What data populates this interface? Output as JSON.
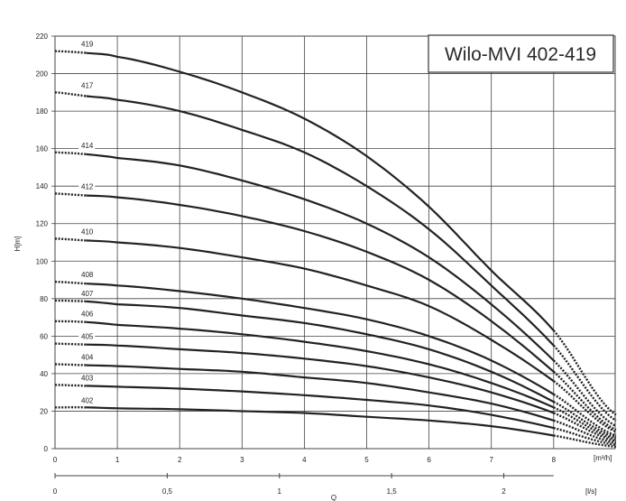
{
  "chart_data": {
    "type": "line",
    "title": "Wilo-MVI 402-419",
    "ylabel": "H[m]",
    "xlabel": "[m³/h]",
    "x2label": "[l/s]",
    "x2title": "Q",
    "xlim": [
      0,
      9
    ],
    "ylim": [
      0,
      220
    ],
    "x_ticks": [
      0,
      1,
      2,
      3,
      4,
      5,
      6,
      7,
      8
    ],
    "y_ticks": [
      0,
      20,
      40,
      60,
      80,
      100,
      120,
      140,
      160,
      180,
      200,
      220
    ],
    "x2_ticks": [
      "0",
      "0,5",
      "1",
      "1,5",
      "2"
    ],
    "x2_values": [
      0,
      0.5,
      1,
      1.5,
      2
    ],
    "grid": true,
    "colors": {
      "curve": "#222222",
      "grid": "#444444",
      "title_box": "#333333"
    },
    "series": [
      {
        "name": "419",
        "x": [
          0,
          0.5,
          1,
          2,
          3,
          4,
          5,
          6,
          7,
          8,
          9
        ],
        "y": [
          212,
          211,
          209,
          201,
          190,
          176,
          156,
          129,
          95,
          63,
          18
        ],
        "solid_x": [
          0.5,
          8
        ]
      },
      {
        "name": "417",
        "x": [
          0,
          0.5,
          1,
          2,
          3,
          4,
          5,
          6,
          7,
          8,
          9
        ],
        "y": [
          190,
          188,
          186,
          180,
          170,
          158,
          140,
          117,
          87,
          55,
          15
        ],
        "solid_x": [
          0.5,
          8
        ]
      },
      {
        "name": "414",
        "x": [
          0,
          0.5,
          1,
          2,
          3,
          4,
          5,
          6,
          7,
          8,
          9
        ],
        "y": [
          158,
          157,
          155,
          151,
          143,
          133,
          120,
          102,
          77,
          47,
          12
        ],
        "solid_x": [
          0.5,
          8
        ]
      },
      {
        "name": "412",
        "x": [
          0,
          0.5,
          1,
          2,
          3,
          4,
          5,
          6,
          7,
          8,
          9
        ],
        "y": [
          136,
          135,
          134,
          130,
          124,
          116,
          105,
          90,
          68,
          41,
          10
        ],
        "solid_x": [
          0.5,
          8
        ]
      },
      {
        "name": "410",
        "x": [
          0,
          0.5,
          1,
          2,
          3,
          4,
          5,
          6,
          7,
          8,
          9
        ],
        "y": [
          112,
          111,
          110,
          107,
          102,
          96,
          87,
          76,
          58,
          36,
          9
        ],
        "solid_x": [
          0.5,
          8
        ]
      },
      {
        "name": "408",
        "x": [
          0,
          0.5,
          1,
          2,
          3,
          4,
          5,
          6,
          7,
          8,
          9
        ],
        "y": [
          89,
          88,
          87,
          84,
          80,
          75,
          69,
          60,
          47,
          29,
          7
        ],
        "solid_x": [
          0.5,
          8
        ]
      },
      {
        "name": "407",
        "x": [
          0,
          0.5,
          1,
          2,
          3,
          4,
          5,
          6,
          7,
          8,
          9
        ],
        "y": [
          79,
          78.5,
          77,
          75,
          71,
          67,
          61,
          53,
          41,
          25,
          6
        ],
        "solid_x": [
          0.5,
          8
        ]
      },
      {
        "name": "406",
        "x": [
          0,
          0.5,
          1,
          2,
          3,
          4,
          5,
          6,
          7,
          8,
          9
        ],
        "y": [
          68,
          67.5,
          66,
          64,
          61,
          57,
          52,
          45,
          35,
          22,
          5
        ],
        "solid_x": [
          0.5,
          8
        ]
      },
      {
        "name": "405",
        "x": [
          0,
          0.5,
          1,
          2,
          3,
          4,
          5,
          6,
          7,
          8,
          9
        ],
        "y": [
          56,
          55.5,
          55,
          53,
          51,
          48,
          44,
          38,
          30,
          19,
          4
        ],
        "solid_x": [
          0.5,
          8
        ]
      },
      {
        "name": "404",
        "x": [
          0,
          0.5,
          1,
          2,
          3,
          4,
          5,
          6,
          7,
          8,
          9
        ],
        "y": [
          45,
          44.5,
          44,
          42.5,
          41,
          38,
          35,
          30,
          24,
          15,
          3
        ],
        "solid_x": [
          0.5,
          8
        ]
      },
      {
        "name": "403",
        "x": [
          0,
          0.5,
          1,
          2,
          3,
          4,
          5,
          6,
          7,
          8,
          9
        ],
        "y": [
          34,
          33.5,
          33,
          32,
          30.5,
          28.5,
          26,
          23,
          18,
          11,
          2
        ],
        "solid_x": [
          0.5,
          8
        ]
      },
      {
        "name": "402",
        "x": [
          0,
          0.5,
          1,
          2,
          3,
          4,
          5,
          6,
          7,
          8,
          9
        ],
        "y": [
          22,
          22,
          21.5,
          21,
          20,
          19,
          17,
          15,
          12,
          7,
          1
        ],
        "solid_x": [
          0.5,
          8
        ]
      }
    ]
  }
}
